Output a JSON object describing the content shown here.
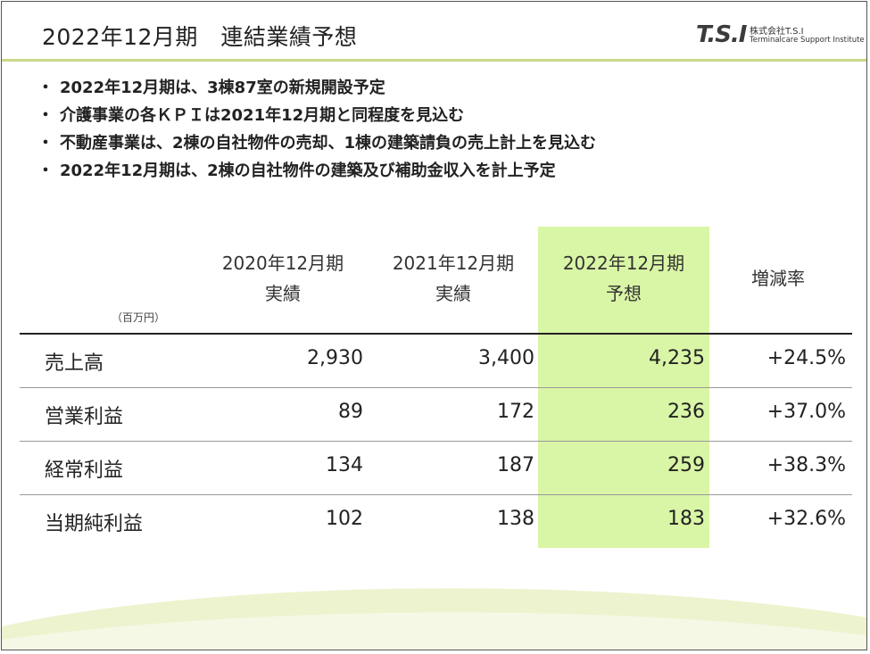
{
  "header": {
    "title": "2022年12月期　連結業績予想",
    "logo": {
      "mark": "T.S.I",
      "company": "株式会社T.S.I",
      "tagline": "Terminalcare Support Institute"
    }
  },
  "bullets": [
    "2022年12月期は、3棟87室の新規開設予定",
    "介護事業の各ＫＰＩは2021年12月期と同程度を見込む",
    "不動産事業は、2棟の自社物件の売却、1棟の建築請負の売上計上を見込む",
    "2022年12月期は、2棟の自社物件の建築及び補助金収入を計上予定"
  ],
  "bullet_mark": "・",
  "table": {
    "unit": "（百万円）",
    "headers": [
      {
        "line1": "2020年12月期",
        "line2": "実績"
      },
      {
        "line1": "2021年12月期",
        "line2": "実績"
      },
      {
        "line1": "2022年12月期",
        "line2": "予想"
      }
    ],
    "growth_header": "増減率",
    "rows": [
      {
        "label": "売上高",
        "v2020": "2,930",
        "v2021": "3,400",
        "v2022": "4,235",
        "growth": "+24.5%"
      },
      {
        "label": "営業利益",
        "v2020": "89",
        "v2021": "172",
        "v2022": "236",
        "growth": "+37.0%"
      },
      {
        "label": "経常利益",
        "v2020": "134",
        "v2021": "187",
        "v2022": "259",
        "growth": "+38.3%"
      },
      {
        "label": "当期純利益",
        "v2020": "102",
        "v2021": "138",
        "v2022": "183",
        "growth": "+32.6%"
      }
    ],
    "highlight_color": "#d9f5a6"
  },
  "colors": {
    "accent_rule": "#c8d98a",
    "footer_wave": "#eef3cf"
  }
}
